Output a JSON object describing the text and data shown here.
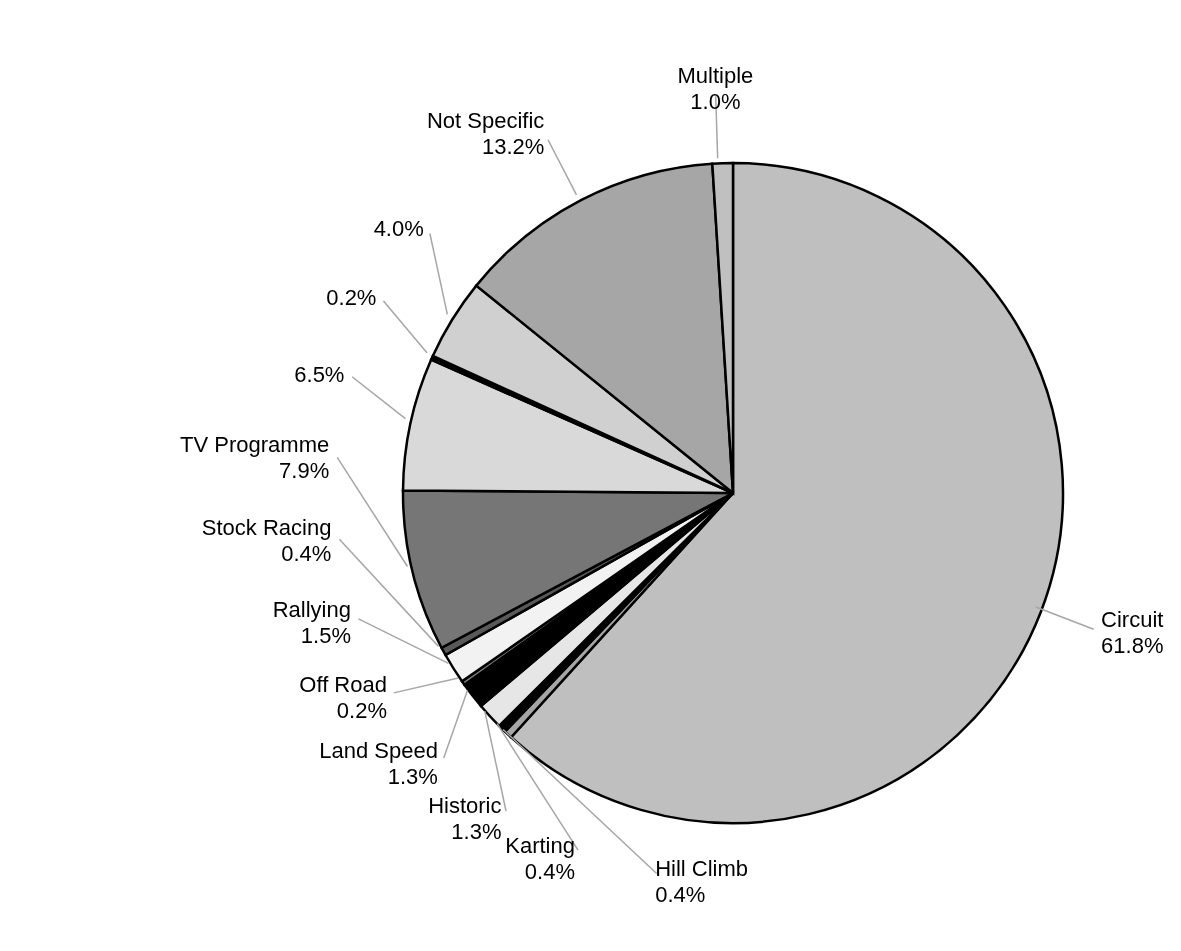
{
  "chart_data": {
    "type": "pie",
    "categories": [
      "Circuit",
      "Hill Climb",
      "Karting",
      "Historic",
      "Land Speed",
      "Off Road",
      "Rallying",
      "Stock Racing",
      "TV Programme",
      null,
      null,
      null,
      "Not Specific",
      "Multiple"
    ],
    "values": [
      61.8,
      0.4,
      0.4,
      1.3,
      1.3,
      0.2,
      1.5,
      0.4,
      7.9,
      6.5,
      0.2,
      4.0,
      13.2,
      1.0
    ],
    "value_labels": [
      "61.8%",
      "0.4%",
      "0.4%",
      "1.3%",
      "1.3%",
      "0.2%",
      "1.5%",
      "0.4%",
      "7.9%",
      "6.5%",
      "0.2%",
      "4.0%",
      "13.2%",
      "1.0%"
    ],
    "colors": [
      "#bfbfbf",
      "#a6a6a6",
      "#000000",
      "#e6e6e6",
      "#000000",
      "#7f7f7f",
      "#f2f2f2",
      "#595959",
      "#767676",
      "#d9d9d9",
      "#000000",
      "#d0d0d0",
      "#a6a6a6",
      "#c0c0c0"
    ],
    "legend": false
  }
}
